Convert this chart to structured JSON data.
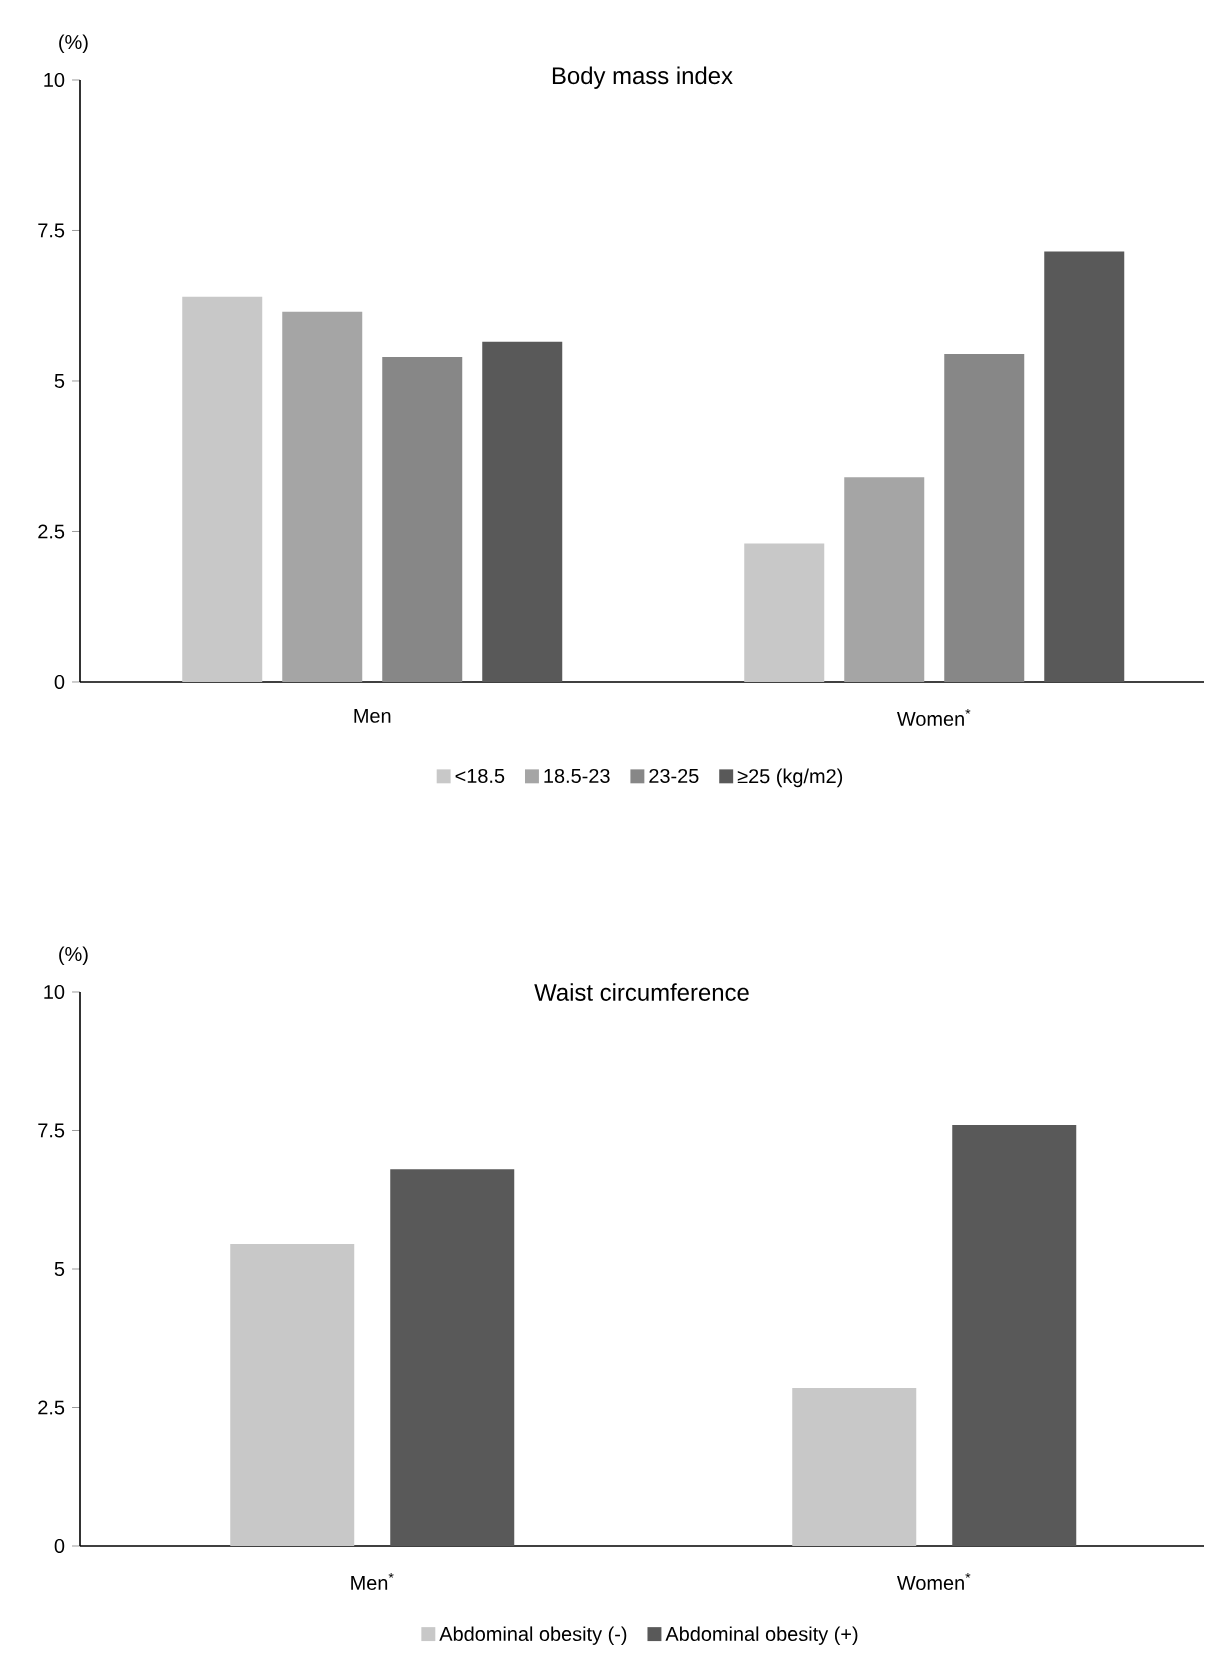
{
  "chart_data": [
    {
      "type": "bar",
      "title": "Body mass index",
      "ylabel": "(%)",
      "categories": [
        "Men",
        "Women$^{*}$"
      ],
      "ylim": [
        0,
        10
      ],
      "yticks": [
        0,
        2.5,
        5,
        7.5,
        10
      ],
      "legend": "bottom",
      "series": [
        {
          "name": "<18.5",
          "color": "#c8c8c8",
          "values": [
            6.4,
            2.3
          ]
        },
        {
          "name": "18.5-23",
          "color": "#a5a5a5",
          "values": [
            6.15,
            3.4
          ]
        },
        {
          "name": "23-25",
          "color": "#878787",
          "values": [
            5.4,
            5.45
          ]
        },
        {
          "name": "≥25 (kg/m2)",
          "color": "#595959",
          "values": [
            5.65,
            7.15
          ]
        }
      ]
    },
    {
      "type": "bar",
      "title": "Waist circumference",
      "ylabel": "(%)",
      "categories": [
        "Men$^{*}$",
        "Women$^{*}$"
      ],
      "ylim": [
        0,
        10
      ],
      "yticks": [
        0,
        2.5,
        5,
        7.5,
        10
      ],
      "legend": "bottom",
      "series": [
        {
          "name": "Abdominal obesity (-)",
          "color": "#c8c8c8",
          "values": [
            5.45,
            2.85
          ]
        },
        {
          "name": "Abdominal obesity (+)",
          "color": "#595959",
          "values": [
            6.8,
            7.6
          ]
        }
      ]
    }
  ]
}
